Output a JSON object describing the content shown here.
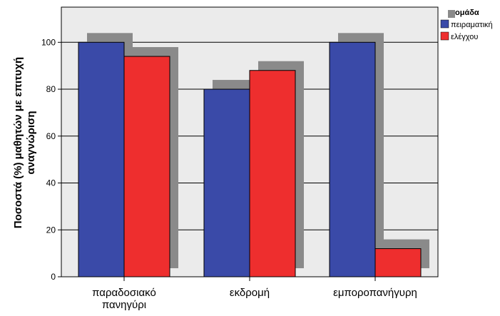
{
  "chart_data": {
    "type": "bar",
    "categories": [
      "παραδοσιακό πανηγύρι",
      "εκδρομή",
      "εμποροπανήγυρη"
    ],
    "category_lines": [
      [
        "παραδοσιακό",
        "πανηγύρι"
      ],
      [
        "εκδρομή"
      ],
      [
        "εμποροπανήγυρη"
      ]
    ],
    "series": [
      {
        "name": "πειραματική",
        "values": [
          100,
          80,
          100
        ],
        "color": "#3a4aa8"
      },
      {
        "name": "ελέγχου",
        "values": [
          94,
          88,
          12
        ],
        "color": "#ee2e2e"
      }
    ],
    "ylabel_lines": [
      "Ποσοστά (%) μαθητών με επιτυχή",
      "αναγνώριση"
    ],
    "yticks": [
      0,
      20,
      40,
      60,
      80,
      100
    ],
    "ylim": [
      0,
      115
    ],
    "legend_title": "ομάδα",
    "legend_position": "top-right",
    "grid": true,
    "background": "#ebebeb",
    "shadow_color": "#8a8a8a"
  }
}
